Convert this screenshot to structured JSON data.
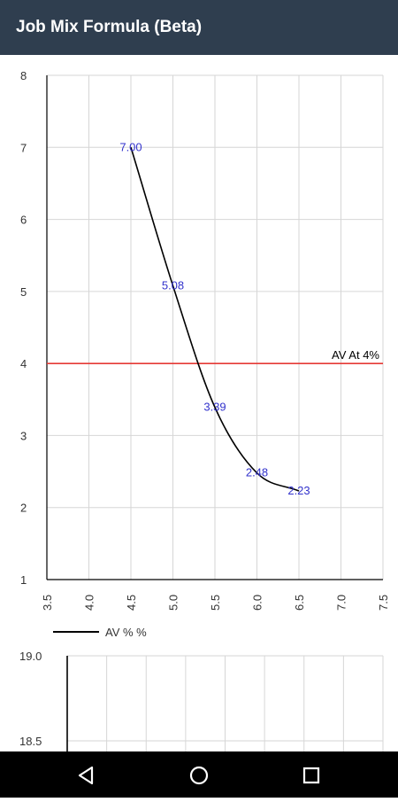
{
  "app": {
    "title": "Job Mix Formula (Beta)"
  },
  "colors": {
    "appbar": "#2f3e4f",
    "curve": "#000000",
    "point_label": "#3333cc",
    "reference_line": "#e53935",
    "grid": "#d6d6d6",
    "axis": "#000000"
  },
  "chart_data": [
    {
      "type": "line",
      "title": "",
      "xlabel": "",
      "ylabel": "",
      "xlim": [
        3.5,
        7.5
      ],
      "ylim": [
        1,
        8
      ],
      "x_ticks": [
        "3.5",
        "4.0",
        "4.5",
        "5.0",
        "5.5",
        "6.0",
        "6.5",
        "7.0",
        "7.5"
      ],
      "y_ticks": [
        "1",
        "2",
        "3",
        "4",
        "5",
        "6",
        "7",
        "8"
      ],
      "grid": true,
      "legend": "bottom-left",
      "series": [
        {
          "name": "AV % %",
          "x": [
            4.5,
            5.0,
            5.5,
            6.0,
            6.5
          ],
          "values": [
            7.0,
            5.08,
            3.39,
            2.48,
            2.23
          ],
          "labels": [
            "7.00",
            "5.08",
            "3.39",
            "2.48",
            "2.23"
          ],
          "smooth": true
        }
      ],
      "reference_lines": [
        {
          "y": 4,
          "label": "AV At 4%"
        }
      ]
    },
    {
      "type": "line",
      "title": "",
      "xlabel": "",
      "ylabel": "",
      "y_ticks_visible": [
        "19.0",
        "18.5"
      ],
      "grid": true,
      "series": []
    }
  ],
  "navbar": {
    "back_icon": "back-triangle-icon",
    "home_icon": "home-circle-icon",
    "recents_icon": "recents-square-icon"
  }
}
